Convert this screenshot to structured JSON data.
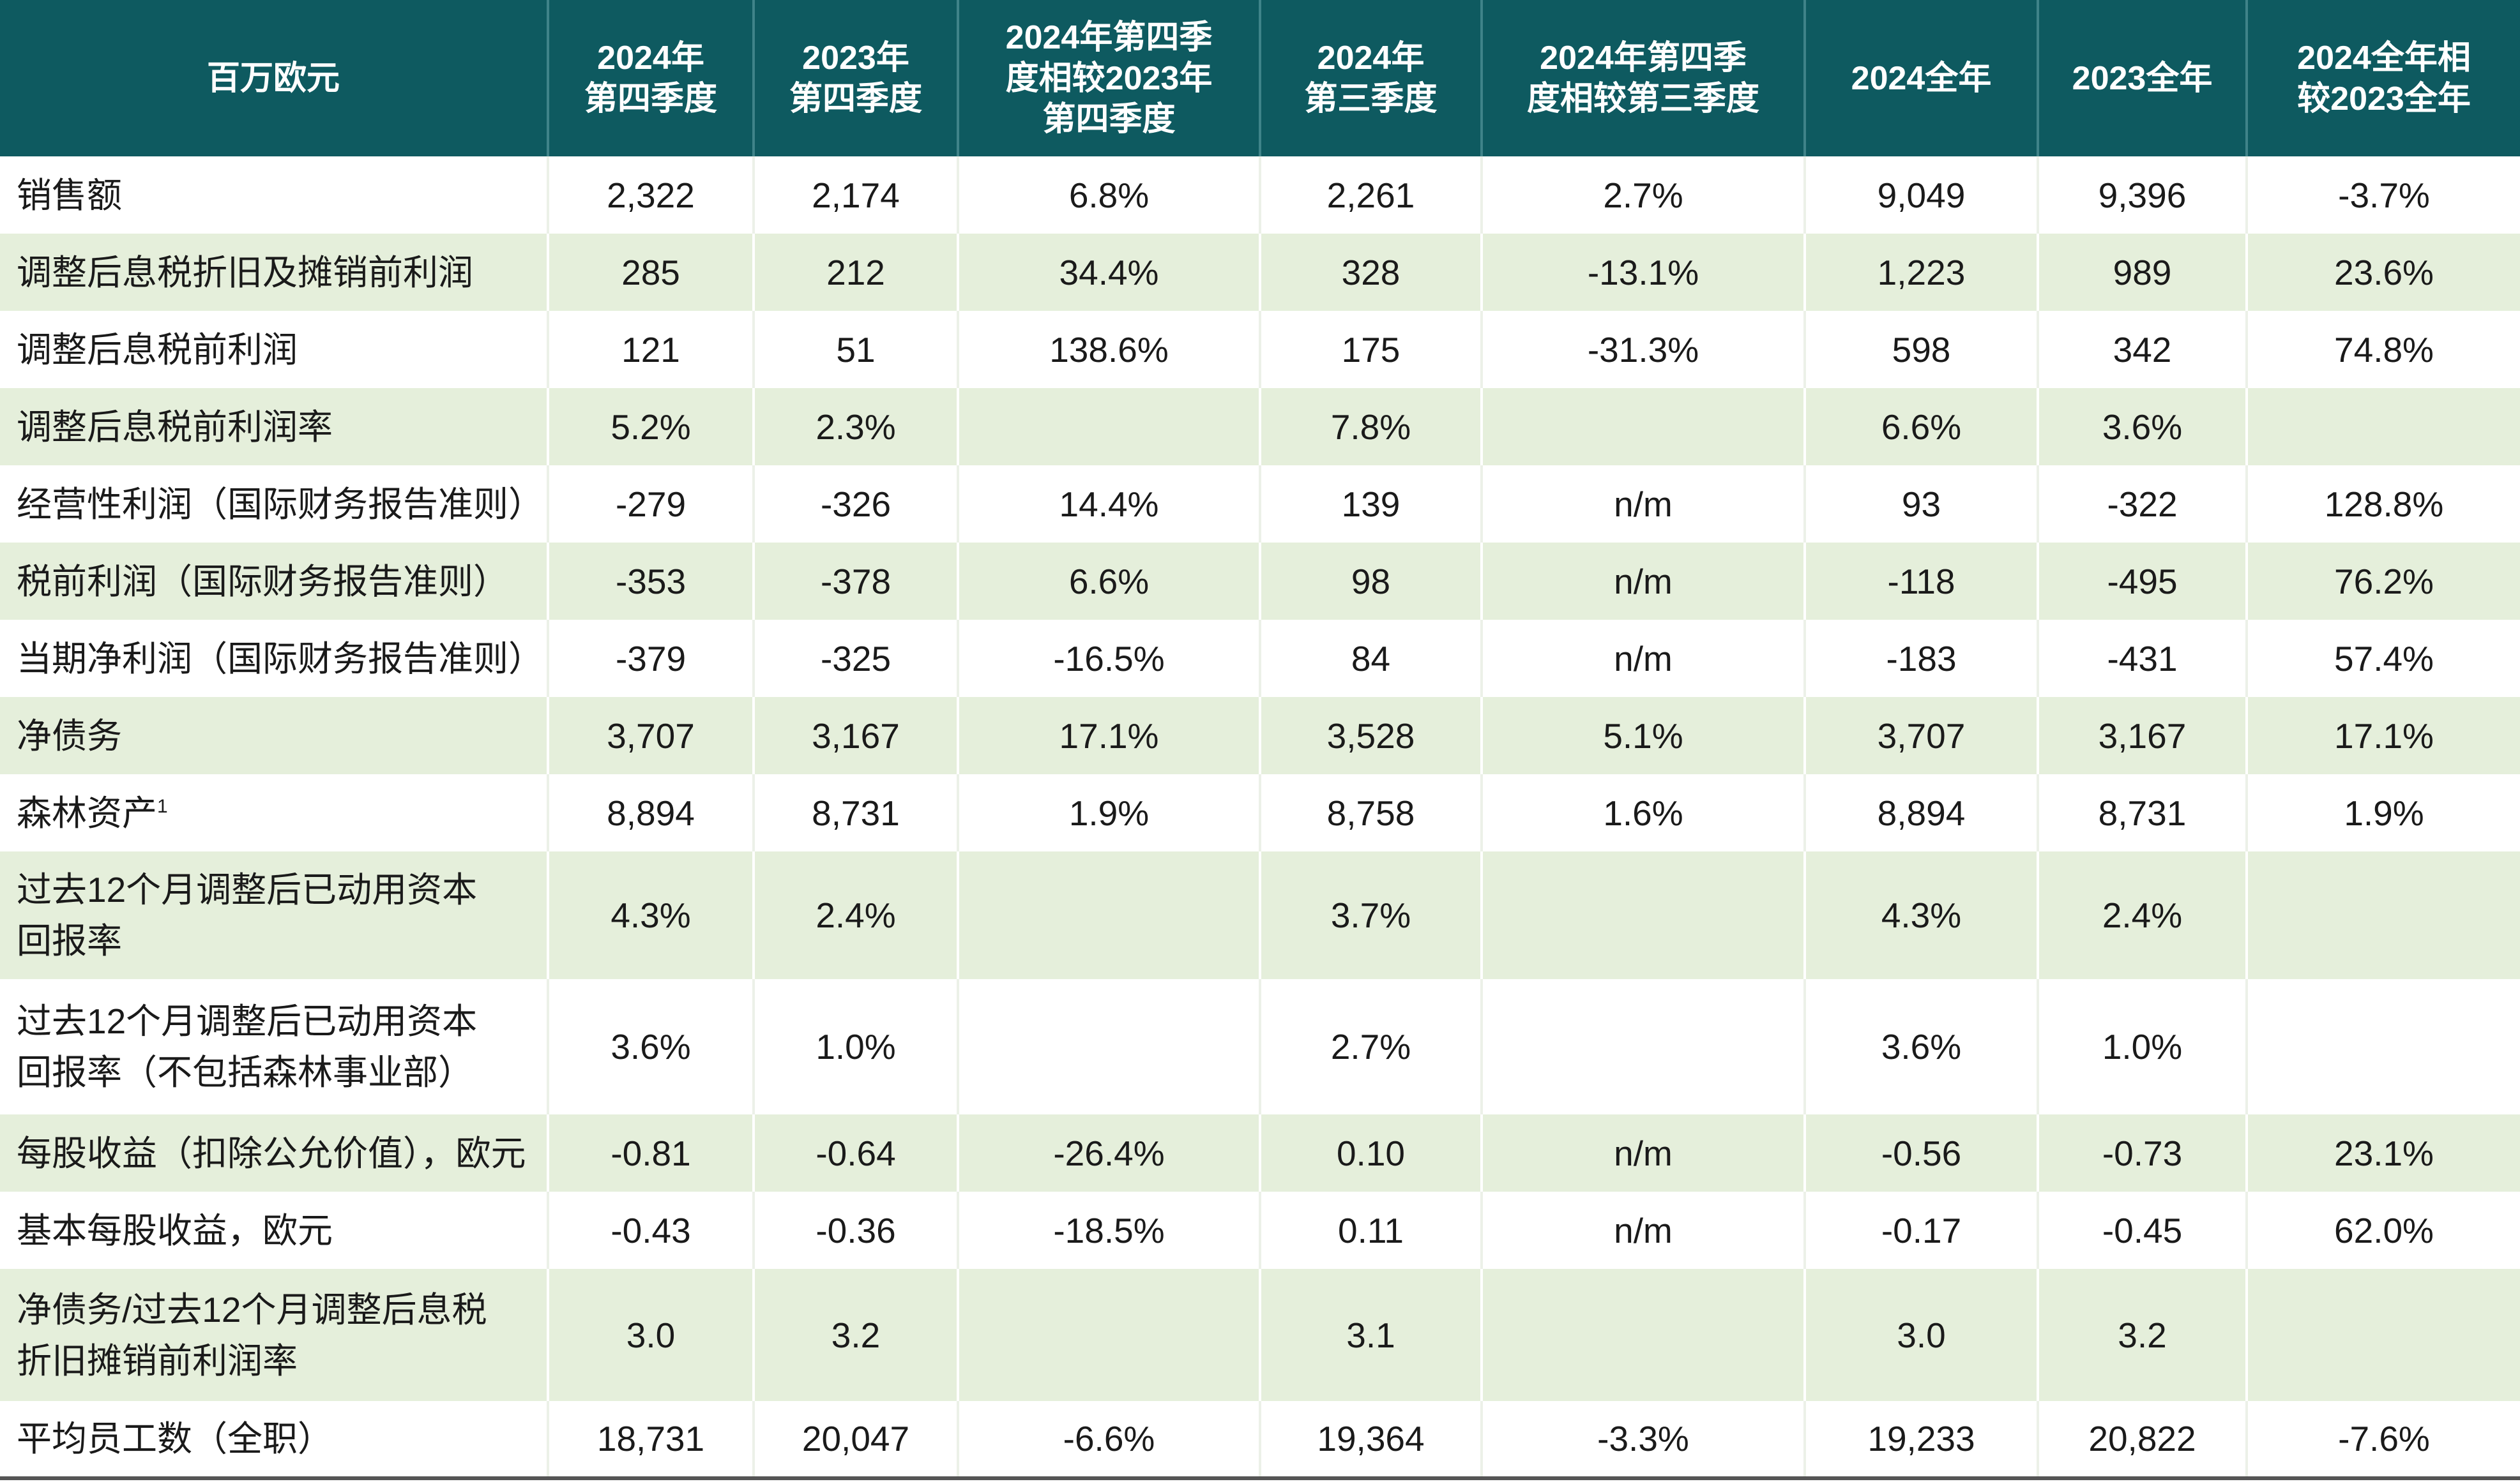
{
  "table": {
    "header": [
      [
        "百万欧元"
      ],
      [
        "2024年",
        "第四季度"
      ],
      [
        "2023年",
        "第四季度"
      ],
      [
        "2024年第四季",
        "度相较2023年",
        "第四季度"
      ],
      [
        "2024年",
        "第三季度"
      ],
      [
        "2024年第四季",
        "度相较第三季度"
      ],
      [
        "2024全年"
      ],
      [
        "2023全年"
      ],
      [
        "2024全年相",
        "较2023全年"
      ]
    ],
    "rows": [
      {
        "label": [
          "销售额"
        ],
        "values": [
          "2,322",
          "2,174",
          "6.8%",
          "2,261",
          "2.7%",
          "9,049",
          "9,396",
          "-3.7%"
        ]
      },
      {
        "label": [
          "调整后息税折旧及摊销前利润"
        ],
        "values": [
          "285",
          "212",
          "34.4%",
          "328",
          "-13.1%",
          "1,223",
          "989",
          "23.6%"
        ]
      },
      {
        "label": [
          "调整后息税前利润"
        ],
        "values": [
          "121",
          "51",
          "138.6%",
          "175",
          "-31.3%",
          "598",
          "342",
          "74.8%"
        ]
      },
      {
        "label": [
          "调整后息税前利润率"
        ],
        "values": [
          "5.2%",
          "2.3%",
          null,
          "7.8%",
          null,
          "6.6%",
          "3.6%",
          null
        ]
      },
      {
        "label": [
          "经营性利润（国际财务报告准则）"
        ],
        "values": [
          "-279",
          "-326",
          "14.4%",
          "139",
          "n/m",
          "93",
          "-322",
          "128.8%"
        ]
      },
      {
        "label": [
          "税前利润（国际财务报告准则）"
        ],
        "values": [
          "-353",
          "-378",
          "6.6%",
          "98",
          "n/m",
          "-118",
          "-495",
          "76.2%"
        ]
      },
      {
        "label": [
          "当期净利润（国际财务报告准则）"
        ],
        "values": [
          "-379",
          "-325",
          "-16.5%",
          "84",
          "n/m",
          "-183",
          "-431",
          "57.4%"
        ]
      },
      {
        "label": [
          "净债务"
        ],
        "values": [
          "3,707",
          "3,167",
          "17.1%",
          "3,528",
          "5.1%",
          "3,707",
          "3,167",
          "17.1%"
        ]
      },
      {
        "label": [
          "森林资产"
        ],
        "footnote": "1",
        "values": [
          "8,894",
          "8,731",
          "1.9%",
          "8,758",
          "1.6%",
          "8,894",
          "8,731",
          "1.9%"
        ]
      },
      {
        "label": [
          "过去12个月调整后已动用资本",
          "回报率"
        ],
        "values": [
          "4.3%",
          "2.4%",
          null,
          "3.7%",
          null,
          "4.3%",
          "2.4%",
          null
        ]
      },
      {
        "label": [
          "过去12个月调整后已动用资本",
          "回报率（不包括森林事业部）"
        ],
        "values": [
          "3.6%",
          "1.0%",
          null,
          "2.7%",
          null,
          "3.6%",
          "1.0%",
          null
        ]
      },
      {
        "label": [
          "每股收益（扣除公允价值），欧元"
        ],
        "values": [
          "-0.81",
          "-0.64",
          "-26.4%",
          "0.10",
          "n/m",
          "-0.56",
          "-0.73",
          "23.1%"
        ]
      },
      {
        "label": [
          "基本每股收益，欧元"
        ],
        "values": [
          "-0.43",
          "-0.36",
          "-18.5%",
          "0.11",
          "n/m",
          "-0.17",
          "-0.45",
          "62.0%"
        ]
      },
      {
        "label": [
          "净债务/过去12个月调整后息税",
          "折旧摊销前利润率"
        ],
        "values": [
          "3.0",
          "3.2",
          null,
          "3.1",
          null,
          "3.0",
          "3.2",
          null
        ]
      },
      {
        "label": [
          "平均员工数（全职）"
        ],
        "values": [
          "18,731",
          "20,047",
          "-6.6%",
          "19,364",
          "-3.3%",
          "19,233",
          "20,822",
          "-7.6%"
        ]
      }
    ]
  }
}
